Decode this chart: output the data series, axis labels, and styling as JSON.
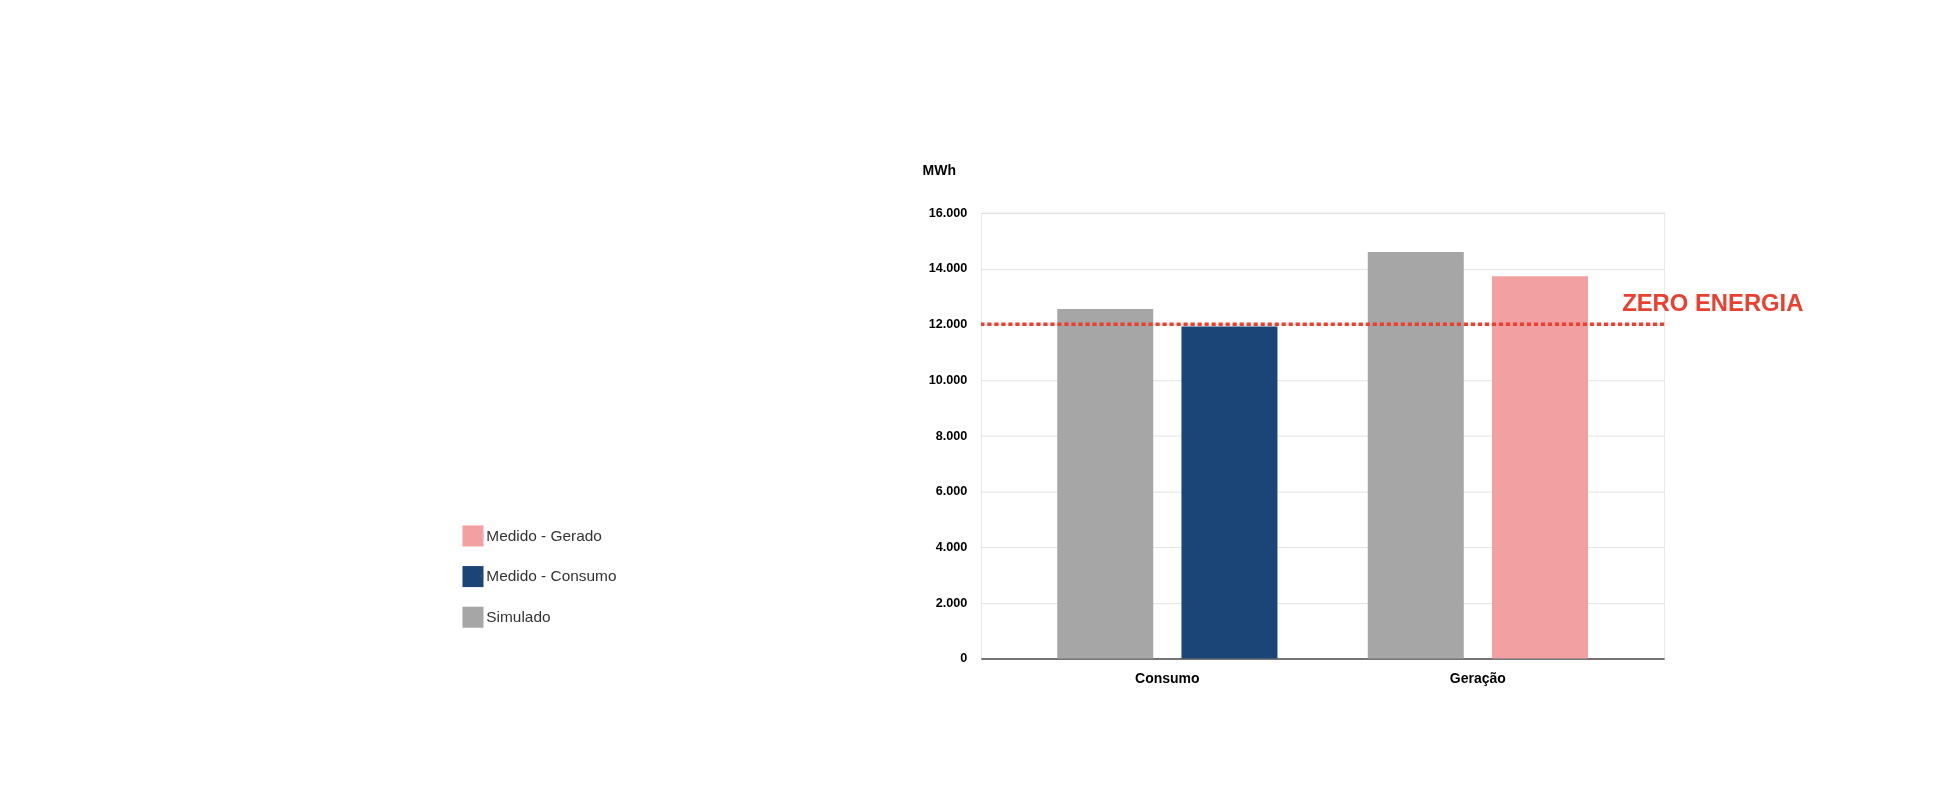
{
  "chart_data": {
    "type": "bar",
    "ylabel": "MWh",
    "categories": [
      "Consumo",
      "Geração"
    ],
    "series": [
      {
        "name": "Simulado",
        "color": "#a6a6a6",
        "values": [
          12550,
          14600
        ]
      },
      {
        "name": "Medido - Consumo",
        "color": "#1b4577",
        "values": [
          11920,
          null
        ]
      },
      {
        "name": "Medido - Gerado",
        "color": "#f2a0a2",
        "values": [
          null,
          13730
        ]
      }
    ],
    "ylim": [
      0,
      16000
    ],
    "yticks": [
      {
        "value": 0,
        "label": "0"
      },
      {
        "value": 2000,
        "label": "2.000"
      },
      {
        "value": 4000,
        "label": "4.000"
      },
      {
        "value": 6000,
        "label": "6.000"
      },
      {
        "value": 8000,
        "label": "8.000"
      },
      {
        "value": 10000,
        "label": "10.000"
      },
      {
        "value": 12000,
        "label": "12.000"
      },
      {
        "value": 14000,
        "label": "14.000"
      },
      {
        "value": 16000,
        "label": "16.000"
      }
    ],
    "grid": "y",
    "legend": "left",
    "ref_lines": [
      {
        "axis": "y",
        "value": 12000,
        "label": "ZERO ENERGIA",
        "color": "#e8412f",
        "line_style": "dotted"
      }
    ]
  }
}
